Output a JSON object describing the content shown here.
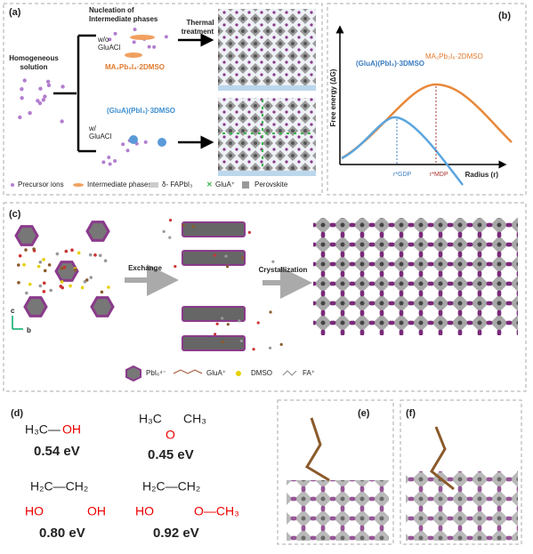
{
  "panel_a": {
    "label": "(a)",
    "nucleation": "Nucleation of",
    "nucleation_2": "Intermediate phases",
    "thermal": "Thermal",
    "thermal_2": "treatment",
    "homogeneous": "Homogeneous",
    "homogeneous_2": "solution",
    "without": "w/o",
    "without_2": "GluACl",
    "ma_phase": "MA₂Pb₃I₈·2DMSO",
    "with": "w/",
    "with_2": "GluACl",
    "glua_phase": "(GluA)(PbI₃)·3DMSO",
    "legend": [
      "Precursor ions",
      "Intermediate phases",
      "δ- FAPbI₃",
      "GluA⁺",
      "Perovskite"
    ]
  },
  "panel_b": {
    "label": "(b)",
    "y_label": "Free energy (ΔG)",
    "x_label": "Radius (r)",
    "glua_phase": "(GluA)(PbI₃)·3DMSO",
    "ma_phase": "MA₂Pb₃I₈·2DMSO",
    "r_gdp": "r*GDP",
    "r_mdp": "r*MDP"
  },
  "panel_c": {
    "label": "(c)",
    "exchange": "Exchange",
    "crystallization": "Crystallization",
    "axis_c": "c",
    "axis_b": "b",
    "legend": [
      "PbI₆⁴⁻",
      "GluA⁺",
      "DMSO",
      "FA⁺"
    ]
  },
  "panel_d": {
    "label": "(d)",
    "items": [
      {
        "parts": [
          "H₃C—",
          "OH"
        ],
        "energy": "0.54 eV"
      },
      {
        "parts": [
          "H₃C",
          "O",
          "CH₃"
        ],
        "energy": "0.45 eV"
      },
      {
        "parts": [
          "H₂C—CH₂",
          "HO",
          "OH"
        ],
        "energy": "0.80 eV"
      },
      {
        "parts": [
          "H₂C—CH₂",
          "HO",
          "O—CH₃"
        ],
        "energy": "0.92 eV"
      }
    ]
  },
  "panel_e": {
    "label": "(e)"
  },
  "panel_f": {
    "label": "(f)"
  }
}
